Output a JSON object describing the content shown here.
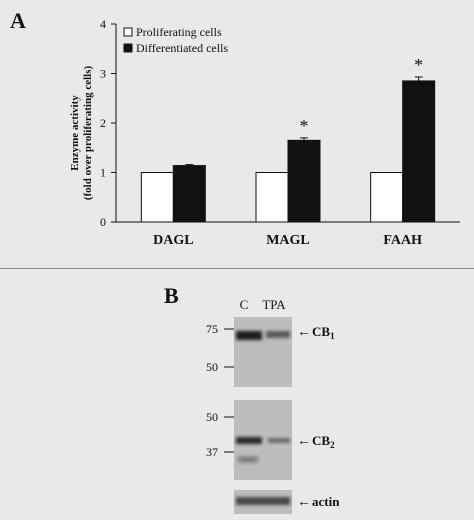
{
  "panel_a": {
    "label": "A"
  },
  "panel_b": {
    "label": "B",
    "lanes": [
      "C",
      "TPA"
    ],
    "blots": [
      {
        "name": "CB1",
        "label_main": "CB",
        "label_sub": "1",
        "markers": [
          "75",
          "50"
        ]
      },
      {
        "name": "CB2",
        "label_main": "CB",
        "label_sub": "2",
        "markers": [
          "50",
          "37"
        ]
      },
      {
        "name": "actin",
        "label_main": "actin",
        "label_sub": "",
        "markers": []
      }
    ],
    "arrow": "←"
  },
  "chart_data": {
    "type": "bar",
    "categories": [
      "DAGL",
      "MAGL",
      "FAAH"
    ],
    "series": [
      {
        "name": "Proliferating cells",
        "values": [
          1,
          1,
          1
        ],
        "errors": [
          0,
          0,
          0
        ],
        "color": "#ffffff"
      },
      {
        "name": "Differentiated cells",
        "values": [
          1.14,
          1.65,
          2.85
        ],
        "errors": [
          0.02,
          0.05,
          0.08
        ],
        "color": "#111111"
      }
    ],
    "significance": [
      "",
      "*",
      "*"
    ],
    "ylabel_lines": [
      "Enzyme activity",
      "(fold over proliferating cells)"
    ],
    "ylim": [
      0,
      4
    ],
    "yticks": [
      0,
      1,
      2,
      3,
      4
    ],
    "grid": false,
    "legend_position": "top-left"
  }
}
